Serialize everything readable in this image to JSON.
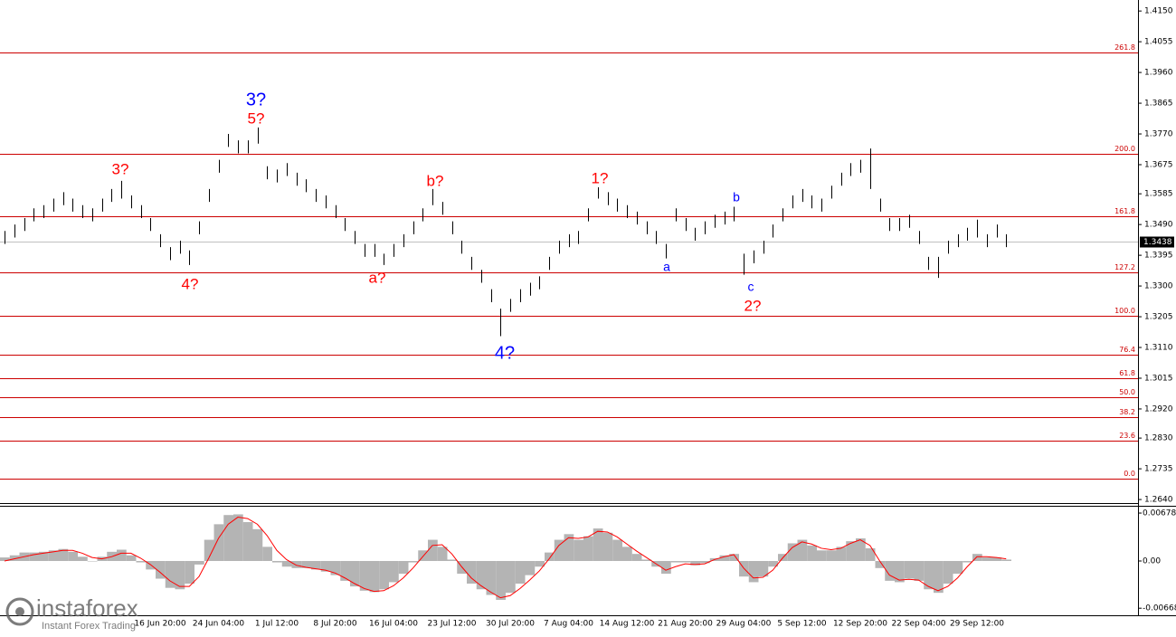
{
  "chart_data": {
    "type": "range-bar",
    "ylim": [
      1.2629,
      1.4184
    ],
    "yticks": [
      {
        "value": 1.415,
        "label": "1.4150"
      },
      {
        "value": 1.4055,
        "label": "1.4055"
      },
      {
        "value": 1.396,
        "label": "1.3960"
      },
      {
        "value": 1.3865,
        "label": "1.3865"
      },
      {
        "value": 1.377,
        "label": "1.3770"
      },
      {
        "value": 1.3675,
        "label": "1.3675"
      },
      {
        "value": 1.3585,
        "label": "1.3585"
      },
      {
        "value": 1.349,
        "label": "1.3490"
      },
      {
        "value": 1.3395,
        "label": "1.3395"
      },
      {
        "value": 1.33,
        "label": "1.3300"
      },
      {
        "value": 1.3205,
        "label": "1.3205"
      },
      {
        "value": 1.311,
        "label": "1.3110"
      },
      {
        "value": 1.3015,
        "label": "1.3015"
      },
      {
        "value": 1.292,
        "label": "1.2920"
      },
      {
        "value": 1.283,
        "label": "1.2830"
      },
      {
        "value": 1.2735,
        "label": "1.2735"
      },
      {
        "value": 1.264,
        "label": "1.2640"
      }
    ],
    "bar_color": "#000000",
    "categories": [
      null,
      null,
      null,
      null,
      null,
      null,
      null,
      null,
      null,
      null,
      null,
      null,
      null,
      null,
      null,
      null,
      "16 Jun 20:00",
      null,
      null,
      null,
      null,
      null,
      "24 Jun 04:00",
      null,
      null,
      null,
      null,
      null,
      "1 Jul 12:00",
      null,
      null,
      null,
      null,
      null,
      "8 Jul 20:00",
      null,
      null,
      null,
      null,
      null,
      "16 Jul 04:00",
      null,
      null,
      null,
      null,
      null,
      "23 Jul 12:00",
      null,
      null,
      null,
      null,
      null,
      "30 Jul 20:00",
      null,
      null,
      null,
      null,
      null,
      "7 Aug 04:00",
      null,
      null,
      null,
      null,
      null,
      "14 Aug 12:00",
      null,
      null,
      null,
      null,
      null,
      "21 Aug 20:00",
      null,
      null,
      null,
      null,
      null,
      "29 Aug 04:00",
      null,
      null,
      null,
      null,
      null,
      "5 Sep 12:00",
      null,
      null,
      null,
      null,
      null,
      "12 Sep 20:00",
      null,
      null,
      null,
      null,
      null,
      "22 Sep 04:00",
      null,
      null,
      null,
      null,
      null,
      "29 Sep 12:00",
      null,
      null,
      null
    ],
    "high": [
      1.347,
      1.349,
      1.351,
      1.354,
      1.355,
      1.357,
      1.359,
      1.357,
      1.355,
      1.354,
      1.357,
      1.36,
      1.3625,
      1.358,
      1.355,
      1.351,
      1.346,
      1.342,
      1.344,
      1.341,
      1.35,
      1.36,
      1.369,
      1.377,
      1.375,
      1.375,
      1.379,
      1.367,
      1.366,
      1.368,
      1.365,
      1.363,
      1.36,
      1.358,
      1.355,
      1.351,
      1.347,
      1.343,
      1.343,
      1.34,
      1.343,
      1.346,
      1.35,
      1.354,
      1.36,
      1.356,
      1.35,
      1.344,
      1.339,
      1.335,
      1.329,
      1.323,
      1.326,
      1.329,
      1.331,
      1.333,
      1.339,
      1.344,
      1.346,
      1.347,
      1.354,
      1.3605,
      1.359,
      1.357,
      1.355,
      1.353,
      1.35,
      1.347,
      1.343,
      1.354,
      1.351,
      1.348,
      1.35,
      1.352,
      1.353,
      1.3545,
      1.34,
      1.341,
      1.344,
      1.349,
      1.354,
      1.358,
      1.36,
      1.358,
      1.357,
      1.361,
      1.365,
      1.368,
      1.369,
      1.3725,
      1.357,
      1.351,
      1.351,
      1.352,
      1.347,
      1.339,
      1.339,
      1.344,
      1.346,
      1.348,
      1.3505,
      1.346,
      1.349,
      1.346
    ],
    "low": [
      1.343,
      1.345,
      1.347,
      1.35,
      1.351,
      1.353,
      1.355,
      1.353,
      1.351,
      1.35,
      1.353,
      1.356,
      1.357,
      1.354,
      1.351,
      1.347,
      1.342,
      1.338,
      1.34,
      1.3365,
      1.346,
      1.356,
      1.365,
      1.373,
      1.371,
      1.371,
      1.374,
      1.363,
      1.362,
      1.364,
      1.361,
      1.359,
      1.356,
      1.354,
      1.351,
      1.347,
      1.343,
      1.339,
      1.339,
      1.3365,
      1.339,
      1.342,
      1.346,
      1.35,
      1.355,
      1.352,
      1.346,
      1.34,
      1.335,
      1.331,
      1.325,
      1.3145,
      1.322,
      1.325,
      1.327,
      1.329,
      1.335,
      1.34,
      1.342,
      1.343,
      1.35,
      1.357,
      1.355,
      1.353,
      1.351,
      1.349,
      1.346,
      1.343,
      1.3385,
      1.35,
      1.347,
      1.344,
      1.346,
      1.348,
      1.349,
      1.35,
      1.3335,
      1.337,
      1.34,
      1.345,
      1.35,
      1.354,
      1.356,
      1.354,
      1.353,
      1.357,
      1.361,
      1.364,
      1.365,
      1.36,
      1.353,
      1.347,
      1.347,
      1.348,
      1.343,
      1.335,
      1.3325,
      1.34,
      1.342,
      1.344,
      1.345,
      1.342,
      1.345,
      1.342
    ],
    "current_price": {
      "value": 1.3438,
      "label": "1.3438"
    },
    "level_color": "#cc0000",
    "fib_levels": [
      {
        "label": "261.8",
        "price": 1.4021
      },
      {
        "label": "200.0",
        "price": 1.3708
      },
      {
        "label": "161.8",
        "price": 1.3515
      },
      {
        "label": "127.2",
        "price": 1.3342
      },
      {
        "label": "100.0",
        "price": 1.3208
      },
      {
        "label": "76.4",
        "price": 1.3087
      },
      {
        "label": "61.8",
        "price": 1.3015
      },
      {
        "label": "50.0",
        "price": 1.2957
      },
      {
        "label": "38.2",
        "price": 1.2895
      },
      {
        "label": "23.6",
        "price": 1.2822
      },
      {
        "label": "0.0",
        "price": 1.2704
      }
    ],
    "annotations": [
      {
        "text": "3?",
        "color": "#0000ff"
      },
      {
        "text": "5?",
        "color": "#ff0000"
      },
      {
        "text": "3?",
        "color": "#ff0000"
      },
      {
        "text": "4?",
        "color": "#ff0000"
      },
      {
        "text": "a?",
        "color": "#ff0000"
      },
      {
        "text": "b?",
        "color": "#ff0000"
      },
      {
        "text": "4?",
        "color": "#0000ff"
      },
      {
        "text": "1?",
        "color": "#ff0000"
      },
      {
        "text": "a",
        "color": "#0000ff"
      },
      {
        "text": "b",
        "color": "#0000ff"
      },
      {
        "text": "c",
        "color": "#0000ff"
      },
      {
        "text": "2?",
        "color": "#ff0000"
      }
    ],
    "macd": {
      "ylim": [
        -0.00768,
        0.00768
      ],
      "yticks": [
        {
          "value": 0.00678,
          "label": "0.00678"
        },
        {
          "value": 0,
          "label": "0.00"
        },
        {
          "value": -0.00668,
          "label": "-0.00668"
        }
      ],
      "histogram_color": "#b4b4b4",
      "signal_color": "#ff0000",
      "histogram": [
        0.0005,
        0.0008,
        0.0012,
        0.0012,
        0.0013,
        0.0015,
        0.0017,
        0.0013,
        0.0006,
        0,
        0.0006,
        0.0013,
        0.0016,
        0.0008,
        -0.0002,
        -0.0012,
        -0.0025,
        -0.0038,
        -0.004,
        -0.0032,
        -0.0005,
        0.003,
        0.0052,
        0.0065,
        0.0066,
        0.0055,
        0.0045,
        0.002,
        -0.0002,
        -0.0008,
        -0.001,
        -0.001,
        -0.0012,
        -0.0015,
        -0.002,
        -0.0028,
        -0.0036,
        -0.0042,
        -0.0044,
        -0.004,
        -0.003,
        -0.0018,
        -0.0002,
        0.0015,
        0.003,
        0.002,
        0.0002,
        -0.0018,
        -0.0032,
        -0.004,
        -0.0048,
        -0.0055,
        -0.0045,
        -0.0032,
        -0.002,
        -0.0008,
        0.0012,
        0.003,
        0.0038,
        0.003,
        0.0035,
        0.0046,
        0.004,
        0.003,
        0.002,
        0.001,
        0.0002,
        -0.0008,
        -0.0018,
        -0.0002,
        -0.0002,
        -0.0006,
        -0.0003,
        0.0004,
        0.0008,
        0.001,
        -0.0022,
        -0.003,
        -0.0022,
        -0.0008,
        0.001,
        0.0025,
        0.003,
        0.0022,
        0.0015,
        0.0015,
        0.002,
        0.0028,
        0.0032,
        0.0018,
        -0.001,
        -0.0028,
        -0.003,
        -0.0025,
        -0.0028,
        -0.004,
        -0.0045,
        -0.0032,
        -0.0018,
        -0.0002,
        0.001,
        0.0005,
        0.0005,
        0.0002
      ],
      "signal": [
        0,
        0.0003,
        0.0006,
        0.0009,
        0.0011,
        0.0013,
        0.0015,
        0.0015,
        0.0011,
        0.0005,
        0.0003,
        0.0006,
        0.0011,
        0.0011,
        0.0004,
        -0.0005,
        -0.0016,
        -0.0028,
        -0.0036,
        -0.0036,
        -0.0022,
        0.0004,
        0.0032,
        0.0052,
        0.0062,
        0.006,
        0.0052,
        0.0036,
        0.0015,
        0.0002,
        -0.0006,
        -0.0009,
        -0.0011,
        -0.0013,
        -0.0017,
        -0.0024,
        -0.0032,
        -0.0039,
        -0.0043,
        -0.0042,
        -0.0035,
        -0.0024,
        -0.001,
        0.0006,
        0.0022,
        0.0023,
        0.001,
        -0.0008,
        -0.0024,
        -0.0035,
        -0.0044,
        -0.0052,
        -0.0049,
        -0.0039,
        -0.0027,
        -0.0014,
        0.0003,
        0.0022,
        0.0033,
        0.0032,
        0.0034,
        0.0042,
        0.0041,
        0.0034,
        0.0024,
        0.0014,
        0.0005,
        -0.0004,
        -0.0013,
        -0.0008,
        -0.0004,
        -0.0005,
        -0.0004,
        0.0002,
        0.0006,
        0.0009,
        -0.001,
        -0.0024,
        -0.0023,
        -0.0013,
        0.0004,
        0.0019,
        0.0027,
        0.0024,
        0.0018,
        0.0016,
        0.0018,
        0.0025,
        0.003,
        0.0022,
        0,
        -0.002,
        -0.0027,
        -0.0026,
        -0.0027,
        -0.0036,
        -0.0042,
        -0.0036,
        -0.0024,
        -0.0008,
        0.0006,
        0.0006,
        0.0005,
        0.0003
      ]
    },
    "logo": {
      "name": "instaforex",
      "tagline": "Instant Forex Trading"
    }
  }
}
